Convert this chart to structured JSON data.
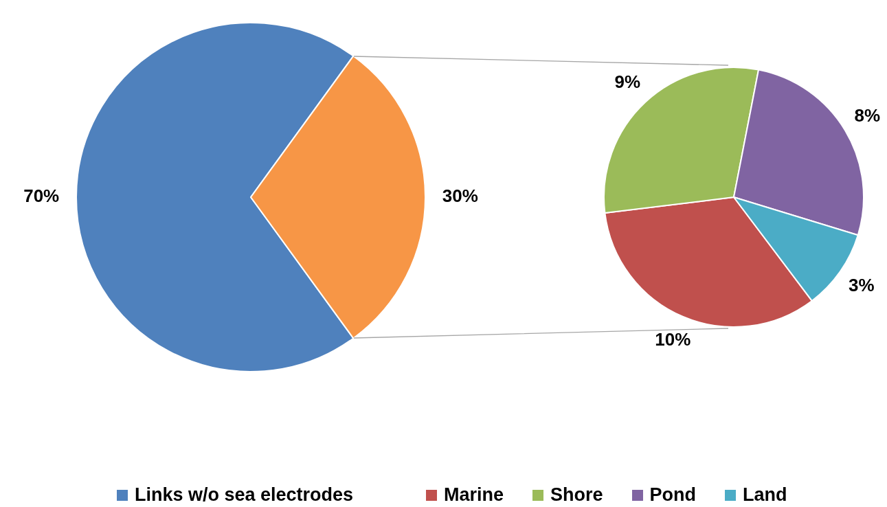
{
  "chart_data": [
    {
      "type": "pie",
      "categories": [
        "Links w/o sea electrodes",
        null
      ],
      "values": [
        70,
        30
      ],
      "colors": [
        "#4f81bd",
        "#f79646"
      ],
      "value_labels": [
        "70%",
        "30%"
      ],
      "legend": "bottom"
    },
    {
      "type": "pie",
      "categories": [
        "Marine",
        "Shore",
        "Pond",
        "Land"
      ],
      "values": [
        10,
        9,
        8,
        3
      ],
      "colors": [
        "#c0504d",
        "#9bbb59",
        "#8064a2",
        "#4bacc6"
      ],
      "value_labels": [
        "10%",
        "9%",
        "8%",
        "3%"
      ],
      "legend": "bottom"
    }
  ]
}
